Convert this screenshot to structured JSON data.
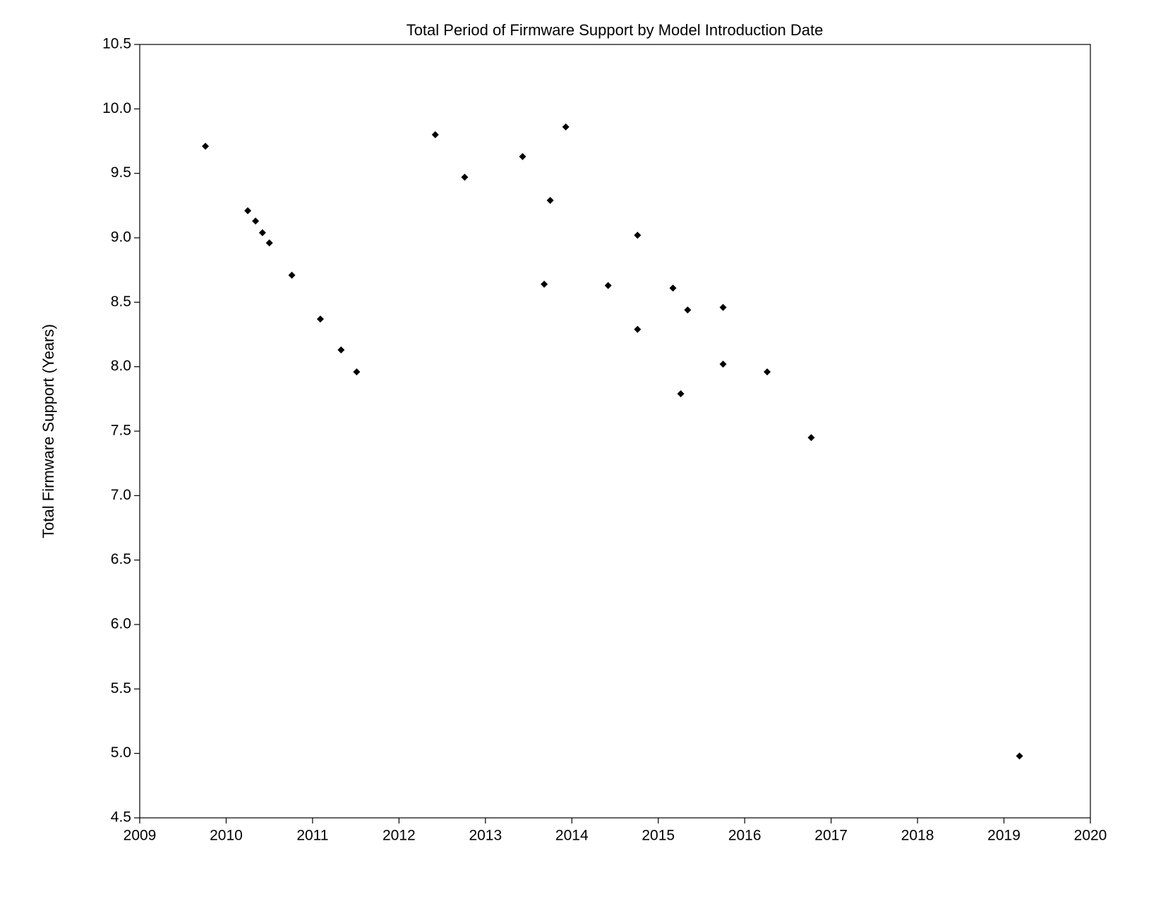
{
  "chart_data": {
    "type": "scatter",
    "title": "Total Period of Firmware Support by Model Introduction Date",
    "y_label": "Total Firmware Support (Years)",
    "color": "#000000",
    "marker": "diamond",
    "x": [
      2009.76,
      2010.25,
      2010.34,
      2010.42,
      2010.5,
      2010.76,
      2011.09,
      2011.33,
      2011.51,
      2012.42,
      2012.76,
      2013.43,
      2013.68,
      2013.75,
      2013.93,
      2014.42,
      2014.76,
      2014.76,
      2015.17,
      2015.26,
      2015.34,
      2015.75,
      2015.75,
      2016.26,
      2016.77,
      2019.18
    ],
    "values": [
      9.71,
      9.21,
      9.13,
      9.04,
      8.96,
      8.71,
      8.37,
      8.13,
      7.96,
      9.8,
      9.47,
      9.63,
      8.64,
      9.29,
      9.86,
      8.63,
      9.02,
      8.29,
      8.61,
      7.79,
      8.44,
      8.46,
      8.02,
      7.96,
      7.45,
      4.98
    ],
    "xlim": [
      2009,
      2020
    ],
    "xticks": [
      2009,
      2010,
      2011,
      2012,
      2013,
      2014,
      2015,
      2016,
      2017,
      2018,
      2019,
      2020
    ],
    "ylim": [
      4.5,
      10.5
    ],
    "yticks": [
      4.5,
      {
        "value": 5,
        "label": "5.0"
      },
      5.5,
      {
        "value": 6,
        "label": "6.0"
      },
      6.5,
      {
        "value": 7,
        "label": "7.0"
      },
      7.5,
      {
        "value": 8,
        "label": "8.0"
      },
      8.5,
      {
        "value": 9,
        "label": "9.0"
      },
      9.5,
      {
        "value": 10,
        "label": "10.0"
      },
      10.5
    ],
    "grid": false
  }
}
